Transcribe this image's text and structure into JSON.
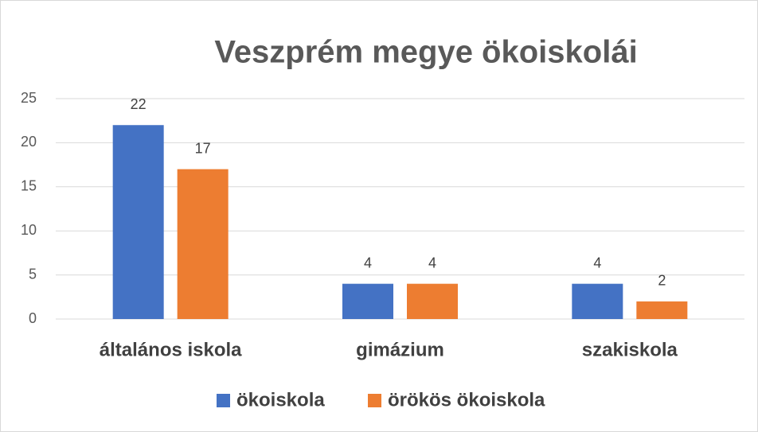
{
  "chart_data": {
    "type": "bar",
    "title": "Veszprém megye ökoiskolái",
    "categories": [
      "általános iskola",
      "gimázium",
      "szakiskola"
    ],
    "series": [
      {
        "name": "ökoiskola",
        "color": "#4472c4",
        "values": [
          22,
          4,
          4
        ]
      },
      {
        "name": "örökös ökoiskola",
        "color": "#ed7d31",
        "values": [
          17,
          4,
          2
        ]
      }
    ],
    "ylim": [
      0,
      25
    ],
    "yticks": [
      0,
      5,
      10,
      15,
      20,
      25
    ],
    "grid": true,
    "legend": "bottom"
  }
}
